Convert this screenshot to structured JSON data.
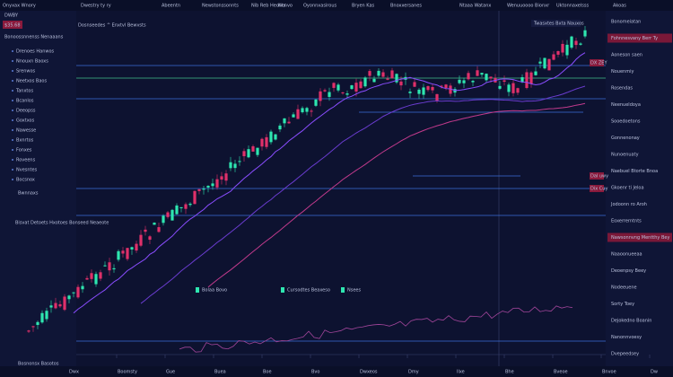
{
  "topbar": {
    "items": [
      "Onyxax Wnory",
      "Dwestry ty ry",
      "Abeentn",
      "Newstonssonnts",
      "Nib Reb Heonts",
      "Nonvo",
      "Oyonnxasirous",
      "Bryen Kas",
      "Bnoxxersanes",
      "Ntaaa Watanx",
      "Wenuuoooo Bionxr",
      "Uktonnaxelsss",
      "Akoas"
    ]
  },
  "left_panel": {
    "badges": [
      "DWBY",
      "$35.68"
    ],
    "title": "Bonoossnnenss Nenaaans",
    "rows": [
      "Drenoes Hanwos",
      "Nnouxn Baoxs",
      "Srenwos",
      "Neetxos Baos",
      "Tanxtos",
      "Bcanlos",
      "Deeopss",
      "Goxtxos",
      "Nawesse",
      "Bxnrtos",
      "Fonxes",
      "Roveens",
      "Nvesntes",
      "Bocsnox"
    ],
    "footer": "Bwnnaxs"
  },
  "chart": {
    "header": "Dosnseedes ^ Enxtvl Bewvsts",
    "tooltip": "Twasxtes Bxta Nauxos",
    "price_tags": [
      "DX ZEY",
      "Dal uwy",
      "Dix Cuy"
    ],
    "overlay_label": "Bisvat Detoets Hxotoes Bonseed Neaeote",
    "legend": [
      "Bolaa Bovo",
      "Cursodtes Beaxeso",
      "Nsees"
    ],
    "bottom_left": "Bosnonsx Basotos"
  },
  "sidebar": {
    "items": [
      "Bonomeiatan",
      "Fohnnesvany Berr Ty",
      "Aoneson saen",
      "Nouenmiy",
      "Rosendas",
      "Neenueldoya",
      "Sooedoetons",
      "Gonnenonay",
      "Nunoenuaty",
      "Naebuel Btorte Bnoa",
      "Gkoenr ti Jeloa",
      "Jodoonn ro Aroh",
      "Eoxerrerntnts",
      "Nawsonnvng Mentthy Bey",
      "Naaoonueeaa",
      "Deoenpsy Beey",
      "Nodeeuene",
      "Sorty Toey",
      "Dejokedno Boanin",
      "Nanonnvoesy",
      "Dvepeedsey"
    ]
  },
  "bottom_axis": {
    "labels": [
      "Dwx",
      "Boomsty",
      "Gue",
      "Buea",
      "Boe",
      "Bvo",
      "Dwxeos",
      "Dmy",
      "Ilxe",
      "Bhe",
      "Bveoe",
      "Bnvoe",
      "Dw"
    ]
  }
}
